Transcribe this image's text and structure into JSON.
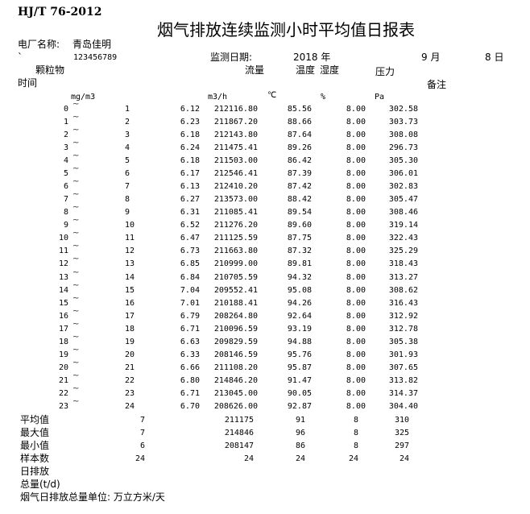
{
  "header": {
    "standard": "HJ/T 76-2012",
    "title": "烟气排放连续监测小时平均值日报表",
    "plant_label": "电厂名称:",
    "plant_name": "青岛佳明",
    "backtick": "`",
    "code": "123456789",
    "date_label": "监测日期:",
    "year": "2018 年",
    "month": "9 月",
    "day": "8 日"
  },
  "columns": {
    "particulate": "颗粒物",
    "flow": "流量",
    "temperature": "温度",
    "humidity": "湿度",
    "pressure": "压力",
    "time": "时间",
    "remark": "备注",
    "unit_particulate": "mg/m3",
    "unit_flow": "m3/h",
    "unit_temperature": "℃",
    "unit_humidity": "%",
    "unit_pressure": "Pa"
  },
  "tilde": "~",
  "rows": [
    [
      "0",
      "1",
      "6.12",
      "212116.80",
      "85.56",
      "8.00",
      "302.58"
    ],
    [
      "1",
      "2",
      "6.23",
      "211867.20",
      "88.66",
      "8.00",
      "303.73"
    ],
    [
      "2",
      "3",
      "6.18",
      "212143.80",
      "87.64",
      "8.00",
      "308.08"
    ],
    [
      "3",
      "4",
      "6.24",
      "211475.41",
      "89.26",
      "8.00",
      "296.73"
    ],
    [
      "4",
      "5",
      "6.18",
      "211503.00",
      "86.42",
      "8.00",
      "305.30"
    ],
    [
      "5",
      "6",
      "6.17",
      "212546.41",
      "87.39",
      "8.00",
      "306.01"
    ],
    [
      "6",
      "7",
      "6.13",
      "212410.20",
      "87.42",
      "8.00",
      "302.83"
    ],
    [
      "7",
      "8",
      "6.27",
      "213573.00",
      "88.42",
      "8.00",
      "305.47"
    ],
    [
      "8",
      "9",
      "6.31",
      "211085.41",
      "89.54",
      "8.00",
      "308.46"
    ],
    [
      "9",
      "10",
      "6.52",
      "211276.20",
      "89.60",
      "8.00",
      "319.14"
    ],
    [
      "10",
      "11",
      "6.47",
      "211125.59",
      "87.75",
      "8.00",
      "322.43"
    ],
    [
      "11",
      "12",
      "6.73",
      "211663.80",
      "87.32",
      "8.00",
      "325.29"
    ],
    [
      "12",
      "13",
      "6.85",
      "210999.00",
      "89.81",
      "8.00",
      "318.43"
    ],
    [
      "13",
      "14",
      "6.84",
      "210705.59",
      "94.32",
      "8.00",
      "313.27"
    ],
    [
      "14",
      "15",
      "7.04",
      "209552.41",
      "95.08",
      "8.00",
      "308.62"
    ],
    [
      "15",
      "16",
      "7.01",
      "210188.41",
      "94.26",
      "8.00",
      "316.43"
    ],
    [
      "16",
      "17",
      "6.79",
      "208264.80",
      "92.64",
      "8.00",
      "312.92"
    ],
    [
      "17",
      "18",
      "6.71",
      "210096.59",
      "93.19",
      "8.00",
      "312.78"
    ],
    [
      "18",
      "19",
      "6.63",
      "209829.59",
      "94.88",
      "8.00",
      "305.38"
    ],
    [
      "19",
      "20",
      "6.33",
      "208146.59",
      "95.76",
      "8.00",
      "301.93"
    ],
    [
      "20",
      "21",
      "6.66",
      "211108.20",
      "95.87",
      "8.00",
      "307.65"
    ],
    [
      "21",
      "22",
      "6.80",
      "214846.20",
      "91.47",
      "8.00",
      "313.82"
    ],
    [
      "22",
      "23",
      "6.71",
      "213045.00",
      "90.05",
      "8.00",
      "314.37"
    ],
    [
      "23",
      "24",
      "6.70",
      "208626.00",
      "92.87",
      "8.00",
      "304.40"
    ]
  ],
  "summary": [
    {
      "label": "平均值",
      "values": [
        "7",
        "211175",
        "91",
        "8",
        "310"
      ]
    },
    {
      "label": "最大值",
      "values": [
        "7",
        "214846",
        "96",
        "8",
        "325"
      ]
    },
    {
      "label": "最小值",
      "values": [
        "6",
        "208147",
        "86",
        "8",
        "297"
      ]
    },
    {
      "label": "样本数",
      "values": [
        "24",
        "24",
        "24",
        "24",
        "24"
      ]
    }
  ],
  "footer": {
    "daily_emission": "日排放",
    "total": "总量(t/d)",
    "unit_note": "烟气日排放总量单位: 万立方米/天"
  }
}
